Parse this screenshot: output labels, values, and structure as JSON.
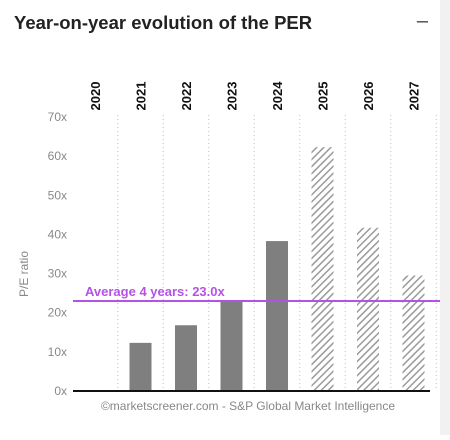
{
  "header": {
    "title": "Year-on-year evolution of the PER",
    "collapse_symbol": "–"
  },
  "chart_data": {
    "type": "bar",
    "categories": [
      "2020",
      "2021",
      "2022",
      "2023",
      "2024",
      "2025",
      "2026",
      "2027"
    ],
    "values": [
      null,
      12.3,
      16.8,
      23.1,
      38.3,
      62.3,
      41.7,
      29.5
    ],
    "estimate_from": "2025",
    "ylabel": "P/E ratio",
    "ylim": [
      0,
      70
    ],
    "y_ticks": [
      "0x",
      "10x",
      "20x",
      "30x",
      "40x",
      "50x",
      "60x",
      "70x"
    ],
    "average_line": {
      "value": 23.0,
      "label": "Average 4 years: 23.0x"
    },
    "grid": "vertical dotted",
    "colors": {
      "actual": "#7f7f7f",
      "estimate_hatch": "#9a9a9a",
      "average": "#b651e8"
    }
  },
  "footer": {
    "source": "©marketscreener.com - S&P Global Market Intelligence"
  }
}
